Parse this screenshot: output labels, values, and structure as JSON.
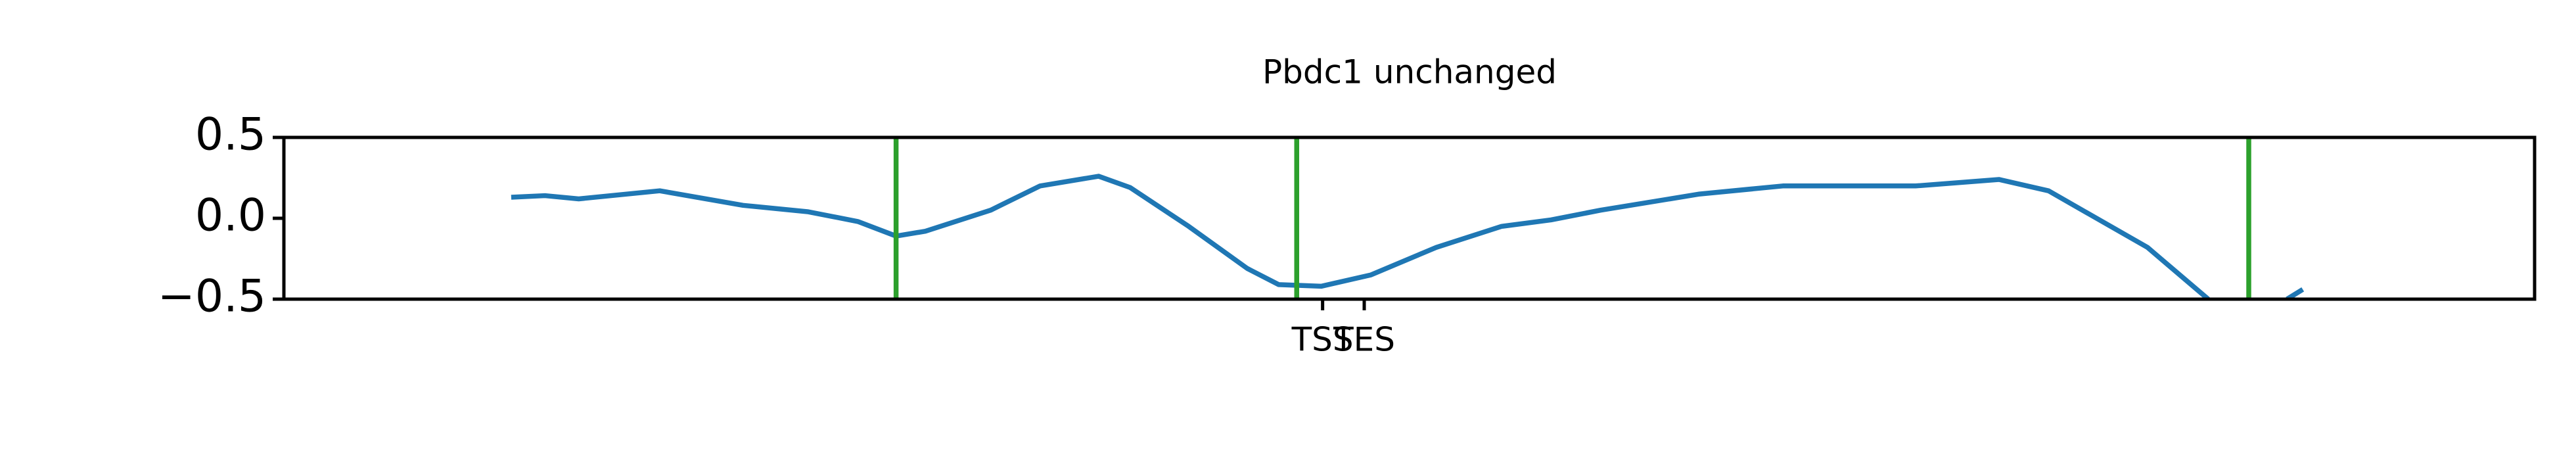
{
  "chart_data": {
    "type": "line",
    "title": "Pbdc1 unchanged",
    "x": [
      101,
      116,
      131,
      167,
      204,
      233,
      255,
      272,
      285,
      314,
      336,
      362,
      376,
      402,
      428,
      442,
      461,
      483,
      512,
      541,
      563,
      585,
      629,
      666,
      725,
      762,
      784,
      828,
      855,
      870,
      890,
      897
    ],
    "series": [
      {
        "color": "#1f77b4",
        "values": [
          0.13,
          0.14,
          0.12,
          0.17,
          0.08,
          0.04,
          -0.02,
          -0.11,
          -0.08,
          0.05,
          0.2,
          0.26,
          0.19,
          -0.05,
          -0.31,
          -0.41,
          -0.42,
          -0.35,
          -0.18,
          -0.05,
          -0.01,
          0.05,
          0.15,
          0.2,
          0.2,
          0.24,
          0.17,
          -0.18,
          -0.5,
          null,
          -0.5,
          -0.44
        ]
      }
    ],
    "vlines": {
      "color": "#2ca02c",
      "x": [
        272,
        450,
        873
      ]
    },
    "xlim": [
      0,
      1000
    ],
    "xticks": [
      {
        "value": 461.5,
        "label": "TSS"
      },
      {
        "value": 480,
        "label": "TES"
      }
    ],
    "ylim": [
      -0.5,
      0.5
    ],
    "yticks": [
      {
        "value": -0.5,
        "label": "−0.5"
      },
      {
        "value": 0,
        "label": "0.0"
      },
      0.5
    ]
  }
}
